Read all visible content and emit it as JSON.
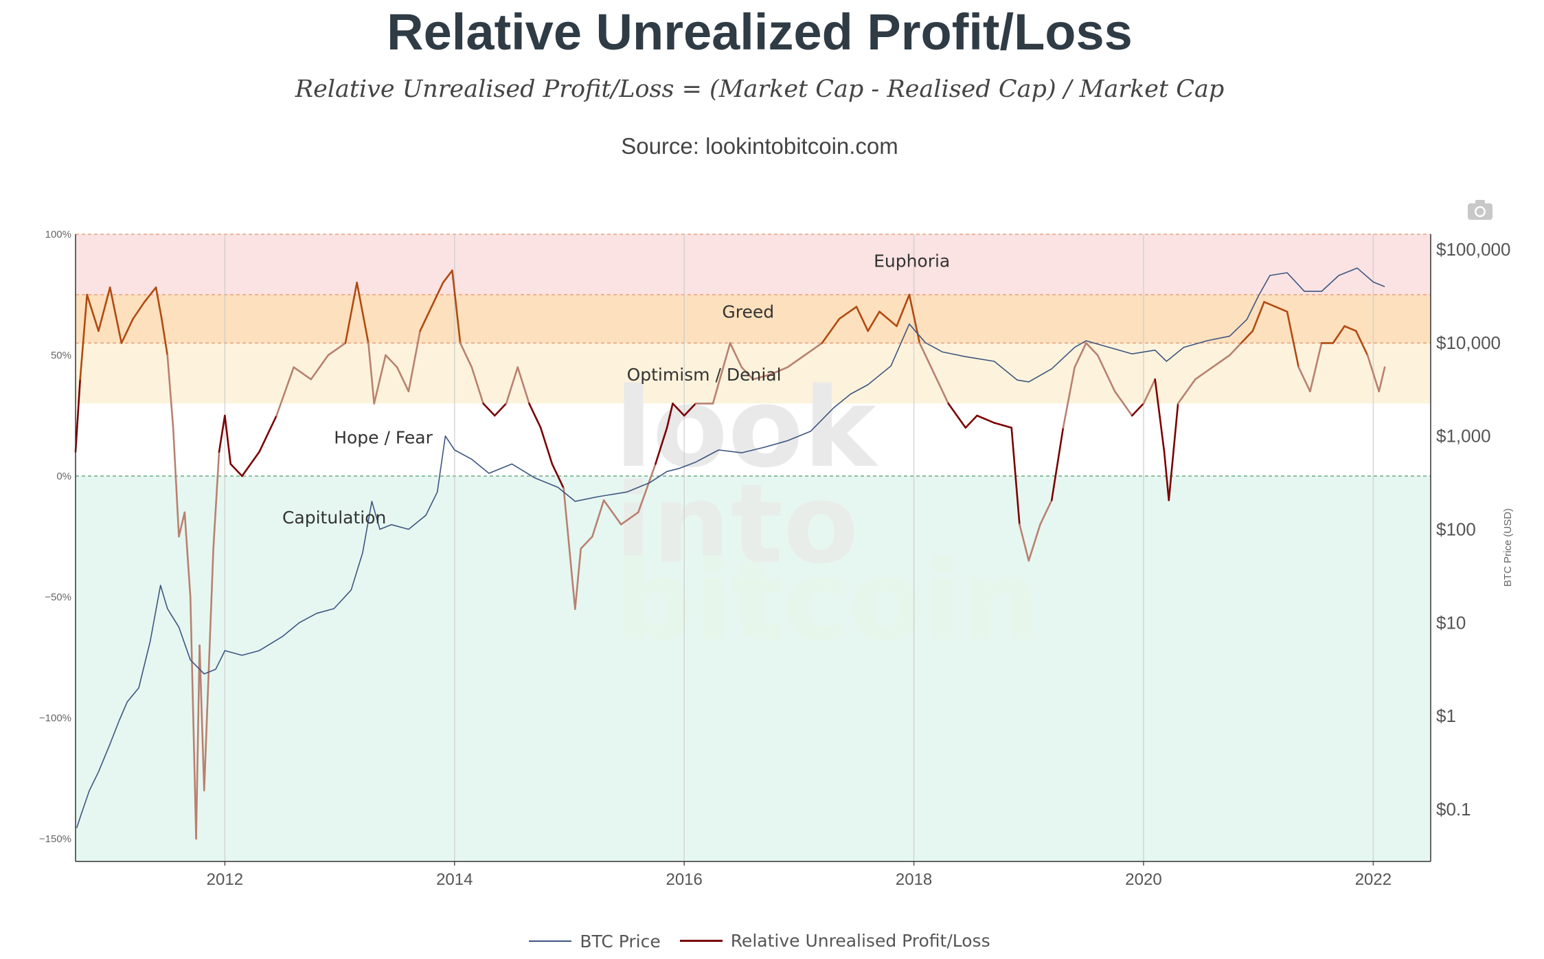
{
  "header": {
    "title": "Relative Unrealized Profit/Loss",
    "formula": "Relative Unrealised Profit/Loss = (Market Cap - Realised Cap) / Market Cap",
    "source": "Source: lookintobitcoin.com"
  },
  "toolbar": {
    "camera_icon": "camera-icon"
  },
  "watermark": [
    "look",
    "into",
    "bitcoin"
  ],
  "colors": {
    "euphoria": "#fbe3e3",
    "greed": "#fde0bd",
    "optimism": "#fdf3dc",
    "capitulation": "#e6f7f1",
    "btc_price": "#3d5580",
    "nupl_dark": "#7a0000",
    "nupl_mid": "#b04a10",
    "nupl_light": "#b98070"
  },
  "chart_data": {
    "type": "line",
    "title": "Relative Unrealized Profit/Loss",
    "subtitle": "Relative Unrealised Profit/Loss = (Market Cap - Realised Cap) / Market Cap",
    "xlabel": "",
    "ylabel_left": "",
    "ylabel_right": "BTC Price (USD)",
    "x_range": [
      2010.7,
      2022.5
    ],
    "y_left_range": [
      -1.6,
      1.0
    ],
    "y_right_range_log10": [
      -1.6,
      5.15
    ],
    "y_right_scale": "log",
    "x_ticks": [
      "2012",
      "2014",
      "2016",
      "2018",
      "2020",
      "2022"
    ],
    "y_left_ticks": [
      {
        "v": 1.0,
        "label": "100%"
      },
      {
        "v": 0.5,
        "label": "50%"
      },
      {
        "v": 0.0,
        "label": "0%"
      },
      {
        "v": -0.5,
        "label": "−50%"
      },
      {
        "v": -1.0,
        "label": "−100%"
      },
      {
        "v": -1.5,
        "label": "−150%"
      }
    ],
    "y_right_ticks": [
      {
        "v": 5,
        "label": "$100,000"
      },
      {
        "v": 4,
        "label": "$10,000"
      },
      {
        "v": 3,
        "label": "$1,000"
      },
      {
        "v": 2,
        "label": "$100"
      },
      {
        "v": 1,
        "label": "$10"
      },
      {
        "v": 0,
        "label": "$1"
      },
      {
        "v": -1,
        "label": "$0.1"
      }
    ],
    "zones": [
      {
        "name": "Euphoria",
        "from": 0.75,
        "to": 1.0,
        "color": "#fbe3e3"
      },
      {
        "name": "Greed",
        "from": 0.55,
        "to": 0.75,
        "color": "#fde0bd"
      },
      {
        "name": "Optimism / Denial",
        "from": 0.3,
        "to": 0.55,
        "color": "#fdf3dc"
      },
      {
        "name": "Hope / Fear",
        "from": 0.0,
        "to": 0.3,
        "color": "#ffffff"
      },
      {
        "name": "Capitulation",
        "from": -1.6,
        "to": 0.0,
        "color": "#e6f7f1"
      }
    ],
    "zone_labels": [
      {
        "text": "Euphoria",
        "x": 2017.65,
        "y": 0.89
      },
      {
        "text": "Greed",
        "x": 2016.33,
        "y": 0.68
      },
      {
        "text": "Optimism / Denial",
        "x": 2015.5,
        "y": 0.42
      },
      {
        "text": "Hope / Fear",
        "x": 2012.95,
        "y": 0.16
      },
      {
        "text": "Capitulation",
        "x": 2012.5,
        "y": -0.17
      }
    ],
    "legend": [
      "BTC Price",
      "Relative Unrealised Profit/Loss"
    ],
    "legend_placement": "bottom-center",
    "series": [
      {
        "name": "BTC Price",
        "axis": "right",
        "unit": "log10 USD",
        "x": [
          2010.71,
          2010.75,
          2010.82,
          2010.9,
          2011.0,
          2011.08,
          2011.15,
          2011.25,
          2011.35,
          2011.44,
          2011.5,
          2011.6,
          2011.7,
          2011.82,
          2011.92,
          2012.0,
          2012.15,
          2012.3,
          2012.5,
          2012.65,
          2012.8,
          2012.95,
          2013.1,
          2013.2,
          2013.28,
          2013.35,
          2013.45,
          2013.6,
          2013.75,
          2013.85,
          2013.92,
          2014.0,
          2014.15,
          2014.3,
          2014.5,
          2014.7,
          2014.9,
          2015.05,
          2015.25,
          2015.5,
          2015.7,
          2015.85,
          2015.95,
          2016.1,
          2016.3,
          2016.5,
          2016.7,
          2016.9,
          2017.1,
          2017.3,
          2017.45,
          2017.6,
          2017.8,
          2017.96,
          2018.1,
          2018.25,
          2018.45,
          2018.7,
          2018.9,
          2019.0,
          2019.2,
          2019.4,
          2019.5,
          2019.7,
          2019.9,
          2020.1,
          2020.2,
          2020.35,
          2020.55,
          2020.75,
          2020.9,
          2021.0,
          2021.1,
          2021.25,
          2021.4,
          2021.55,
          2021.7,
          2021.86,
          2022.0,
          2022.1
        ],
        "y": [
          -1.2,
          -1.05,
          -0.8,
          -0.6,
          -0.3,
          -0.05,
          0.15,
          0.3,
          0.8,
          1.4,
          1.15,
          0.95,
          0.6,
          0.45,
          0.5,
          0.7,
          0.65,
          0.7,
          0.85,
          1.0,
          1.1,
          1.15,
          1.35,
          1.75,
          2.3,
          2.0,
          2.05,
          2.0,
          2.15,
          2.4,
          3.0,
          2.85,
          2.75,
          2.6,
          2.7,
          2.55,
          2.45,
          2.3,
          2.35,
          2.4,
          2.5,
          2.62,
          2.65,
          2.72,
          2.85,
          2.82,
          2.88,
          2.95,
          3.05,
          3.3,
          3.45,
          3.55,
          3.75,
          4.2,
          4.0,
          3.9,
          3.85,
          3.8,
          3.6,
          3.58,
          3.72,
          3.95,
          4.02,
          3.95,
          3.88,
          3.92,
          3.8,
          3.95,
          4.02,
          4.07,
          4.25,
          4.5,
          4.72,
          4.75,
          4.55,
          4.55,
          4.72,
          4.8,
          4.65,
          4.6
        ]
      },
      {
        "name": "Relative Unrealised Profit/Loss",
        "axis": "left",
        "unit": "fraction",
        "x": [
          2010.7,
          2010.74,
          2010.8,
          2010.9,
          2011.0,
          2011.1,
          2011.2,
          2011.3,
          2011.4,
          2011.45,
          2011.5,
          2011.55,
          2011.6,
          2011.65,
          2011.7,
          2011.75,
          2011.78,
          2011.82,
          2011.86,
          2011.9,
          2011.95,
          2012.0,
          2012.05,
          2012.15,
          2012.3,
          2012.45,
          2012.6,
          2012.75,
          2012.9,
          2013.05,
          2013.15,
          2013.25,
          2013.3,
          2013.4,
          2013.5,
          2013.6,
          2013.7,
          2013.8,
          2013.9,
          2013.98,
          2014.05,
          2014.15,
          2014.25,
          2014.35,
          2014.45,
          2014.55,
          2014.65,
          2014.75,
          2014.85,
          2014.95,
          2015.05,
          2015.1,
          2015.2,
          2015.3,
          2015.45,
          2015.6,
          2015.75,
          2015.85,
          2015.9,
          2016.0,
          2016.1,
          2016.25,
          2016.4,
          2016.5,
          2016.6,
          2016.75,
          2016.9,
          2017.05,
          2017.2,
          2017.35,
          2017.5,
          2017.6,
          2017.7,
          2017.85,
          2017.96,
          2018.05,
          2018.15,
          2018.3,
          2018.45,
          2018.55,
          2018.7,
          2018.85,
          2018.92,
          2019.0,
          2019.1,
          2019.2,
          2019.3,
          2019.4,
          2019.5,
          2019.6,
          2019.75,
          2019.9,
          2020.0,
          2020.1,
          2020.18,
          2020.22,
          2020.3,
          2020.45,
          2020.6,
          2020.75,
          2020.85,
          2020.95,
          2021.05,
          2021.15,
          2021.25,
          2021.35,
          2021.45,
          2021.55,
          2021.65,
          2021.75,
          2021.85,
          2021.95,
          2022.05,
          2022.1
        ],
        "y": [
          0.1,
          0.4,
          0.75,
          0.6,
          0.78,
          0.55,
          0.65,
          0.72,
          0.78,
          0.65,
          0.5,
          0.2,
          -0.25,
          -0.15,
          -0.5,
          -1.5,
          -0.7,
          -1.3,
          -0.8,
          -0.3,
          0.1,
          0.25,
          0.05,
          0.0,
          0.1,
          0.25,
          0.45,
          0.4,
          0.5,
          0.55,
          0.8,
          0.55,
          0.3,
          0.5,
          0.45,
          0.35,
          0.6,
          0.7,
          0.8,
          0.85,
          0.55,
          0.45,
          0.3,
          0.25,
          0.3,
          0.45,
          0.3,
          0.2,
          0.05,
          -0.05,
          -0.55,
          -0.3,
          -0.25,
          -0.1,
          -0.2,
          -0.15,
          0.05,
          0.2,
          0.3,
          0.25,
          0.3,
          0.3,
          0.55,
          0.45,
          0.4,
          0.42,
          0.45,
          0.5,
          0.55,
          0.65,
          0.7,
          0.6,
          0.68,
          0.62,
          0.75,
          0.55,
          0.45,
          0.3,
          0.2,
          0.25,
          0.22,
          0.2,
          -0.2,
          -0.35,
          -0.2,
          -0.1,
          0.2,
          0.45,
          0.55,
          0.5,
          0.35,
          0.25,
          0.3,
          0.4,
          0.1,
          -0.1,
          0.3,
          0.4,
          0.45,
          0.5,
          0.55,
          0.6,
          0.72,
          0.7,
          0.68,
          0.45,
          0.35,
          0.55,
          0.55,
          0.62,
          0.6,
          0.5,
          0.35,
          0.45
        ]
      }
    ]
  }
}
